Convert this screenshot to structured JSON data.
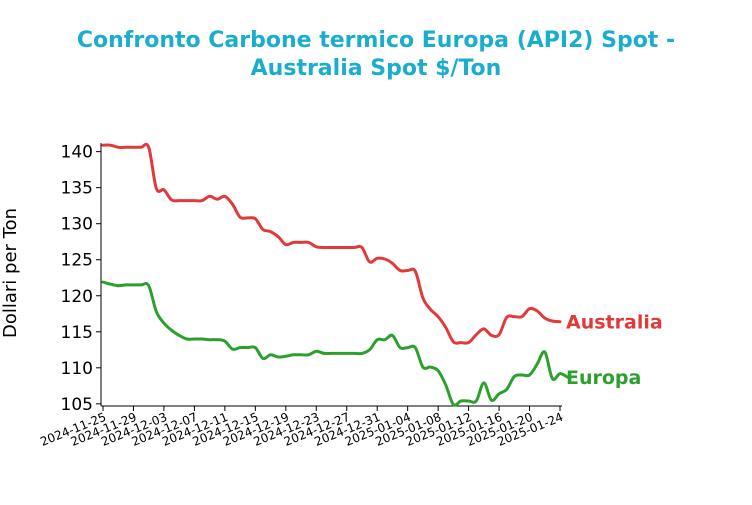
{
  "chart_data": {
    "type": "line",
    "title_line1": "Confronto Carbone termico Europa (API2) Spot -",
    "title_line2": "Australia Spot $/Ton",
    "xlabel": "",
    "ylabel": "Dollari per Ton",
    "ylim": [
      104.7,
      141.2
    ],
    "yticks": [
      105,
      110,
      115,
      120,
      125,
      130,
      135,
      140
    ],
    "xticks": [
      "2024-11-25",
      "2024-11-29",
      "2024-12-03",
      "2024-12-07",
      "2024-12-11",
      "2024-12-15",
      "2024-12-19",
      "2024-12-23",
      "2024-12-27",
      "2024-12-31",
      "2025-01-04",
      "2025-01-08",
      "2025-01-12",
      "2025-01-16",
      "2025-01-20",
      "2025-01-24"
    ],
    "xlim": [
      "2024-11-25",
      "2025-01-24"
    ],
    "grid": false,
    "legend": "none",
    "colors": {
      "title": "#1aaecc",
      "Australia": "#e03a3a",
      "Europa": "#2ca02c"
    },
    "series": [
      {
        "name": "Australia",
        "color": "#e03a3a",
        "points": [
          [
            "2024-11-25",
            140.9
          ],
          [
            "2024-11-26",
            140.9
          ],
          [
            "2024-11-27",
            140.6
          ],
          [
            "2024-11-28",
            140.6
          ],
          [
            "2024-11-29",
            140.6
          ],
          [
            "2024-11-30",
            140.6
          ],
          [
            "2024-12-01",
            140.6
          ],
          [
            "2024-12-02",
            134.9
          ],
          [
            "2024-12-03",
            134.7
          ],
          [
            "2024-12-04",
            133.3
          ],
          [
            "2024-12-05",
            133.2
          ],
          [
            "2024-12-06",
            133.2
          ],
          [
            "2024-12-07",
            133.2
          ],
          [
            "2024-12-08",
            133.2
          ],
          [
            "2024-12-09",
            133.8
          ],
          [
            "2024-12-10",
            133.4
          ],
          [
            "2024-12-11",
            133.8
          ],
          [
            "2024-12-12",
            132.7
          ],
          [
            "2024-12-13",
            130.9
          ],
          [
            "2024-12-14",
            130.8
          ],
          [
            "2024-12-15",
            130.7
          ],
          [
            "2024-12-16",
            129.2
          ],
          [
            "2024-12-17",
            128.9
          ],
          [
            "2024-12-18",
            128.2
          ],
          [
            "2024-12-19",
            127.1
          ],
          [
            "2024-12-20",
            127.4
          ],
          [
            "2024-12-21",
            127.4
          ],
          [
            "2024-12-22",
            127.4
          ],
          [
            "2024-12-23",
            126.8
          ],
          [
            "2024-12-24",
            126.7
          ],
          [
            "2024-12-25",
            126.7
          ],
          [
            "2024-12-26",
            126.7
          ],
          [
            "2024-12-27",
            126.7
          ],
          [
            "2024-12-28",
            126.7
          ],
          [
            "2024-12-29",
            126.7
          ],
          [
            "2024-12-30",
            124.7
          ],
          [
            "2024-12-31",
            125.2
          ],
          [
            "2025-01-01",
            125.1
          ],
          [
            "2025-01-02",
            124.5
          ],
          [
            "2025-01-03",
            123.5
          ],
          [
            "2025-01-04",
            123.5
          ],
          [
            "2025-01-05",
            123.4
          ],
          [
            "2025-01-06",
            119.7
          ],
          [
            "2025-01-07",
            118.1
          ],
          [
            "2025-01-08",
            117.1
          ],
          [
            "2025-01-09",
            115.6
          ],
          [
            "2025-01-10",
            113.6
          ],
          [
            "2025-01-11",
            113.5
          ],
          [
            "2025-01-12",
            113.5
          ],
          [
            "2025-01-13",
            114.6
          ],
          [
            "2025-01-14",
            115.4
          ],
          [
            "2025-01-15",
            114.5
          ],
          [
            "2025-01-16",
            114.6
          ],
          [
            "2025-01-17",
            117.0
          ],
          [
            "2025-01-18",
            117.1
          ],
          [
            "2025-01-19",
            117.1
          ],
          [
            "2025-01-20",
            118.2
          ],
          [
            "2025-01-21",
            117.9
          ],
          [
            "2025-01-22",
            116.9
          ],
          [
            "2025-01-23",
            116.5
          ],
          [
            "2025-01-24",
            116.4
          ]
        ]
      },
      {
        "name": "Europa",
        "color": "#2ca02c",
        "points": [
          [
            "2024-11-25",
            121.9
          ],
          [
            "2024-11-26",
            121.6
          ],
          [
            "2024-11-27",
            121.4
          ],
          [
            "2024-11-28",
            121.5
          ],
          [
            "2024-11-29",
            121.5
          ],
          [
            "2024-11-30",
            121.5
          ],
          [
            "2024-12-01",
            121.4
          ],
          [
            "2024-12-02",
            117.8
          ],
          [
            "2024-12-03",
            116.2
          ],
          [
            "2024-12-04",
            115.2
          ],
          [
            "2024-12-05",
            114.5
          ],
          [
            "2024-12-06",
            114.0
          ],
          [
            "2024-12-07",
            114.0
          ],
          [
            "2024-12-08",
            114.0
          ],
          [
            "2024-12-09",
            113.9
          ],
          [
            "2024-12-10",
            113.9
          ],
          [
            "2024-12-11",
            113.7
          ],
          [
            "2024-12-12",
            112.6
          ],
          [
            "2024-12-13",
            112.8
          ],
          [
            "2024-12-14",
            112.8
          ],
          [
            "2024-12-15",
            112.8
          ],
          [
            "2024-12-16",
            111.3
          ],
          [
            "2024-12-17",
            111.8
          ],
          [
            "2024-12-18",
            111.5
          ],
          [
            "2024-12-19",
            111.6
          ],
          [
            "2024-12-20",
            111.8
          ],
          [
            "2024-12-21",
            111.8
          ],
          [
            "2024-12-22",
            111.8
          ],
          [
            "2024-12-23",
            112.3
          ],
          [
            "2024-12-24",
            112.0
          ],
          [
            "2024-12-25",
            112.0
          ],
          [
            "2024-12-26",
            112.0
          ],
          [
            "2024-12-27",
            112.0
          ],
          [
            "2024-12-28",
            112.0
          ],
          [
            "2024-12-29",
            112.0
          ],
          [
            "2024-12-30",
            112.5
          ],
          [
            "2024-12-31",
            113.9
          ],
          [
            "2025-01-01",
            113.9
          ],
          [
            "2025-01-02",
            114.5
          ],
          [
            "2025-01-03",
            112.8
          ],
          [
            "2025-01-04",
            112.8
          ],
          [
            "2025-01-05",
            112.8
          ],
          [
            "2025-01-06",
            110.1
          ],
          [
            "2025-01-07",
            110.1
          ],
          [
            "2025-01-08",
            109.6
          ],
          [
            "2025-01-09",
            107.6
          ],
          [
            "2025-01-10",
            104.9
          ],
          [
            "2025-01-11",
            105.4
          ],
          [
            "2025-01-12",
            105.4
          ],
          [
            "2025-01-13",
            105.4
          ],
          [
            "2025-01-14",
            107.9
          ],
          [
            "2025-01-15",
            105.5
          ],
          [
            "2025-01-16",
            106.4
          ],
          [
            "2025-01-17",
            107.0
          ],
          [
            "2025-01-18",
            108.8
          ],
          [
            "2025-01-19",
            109.0
          ],
          [
            "2025-01-20",
            109.0
          ],
          [
            "2025-01-21",
            110.5
          ],
          [
            "2025-01-22",
            112.2
          ],
          [
            "2025-01-23",
            108.5
          ],
          [
            "2025-01-24",
            109.2
          ],
          [
            "2025-01-25",
            108.7
          ]
        ]
      }
    ]
  }
}
